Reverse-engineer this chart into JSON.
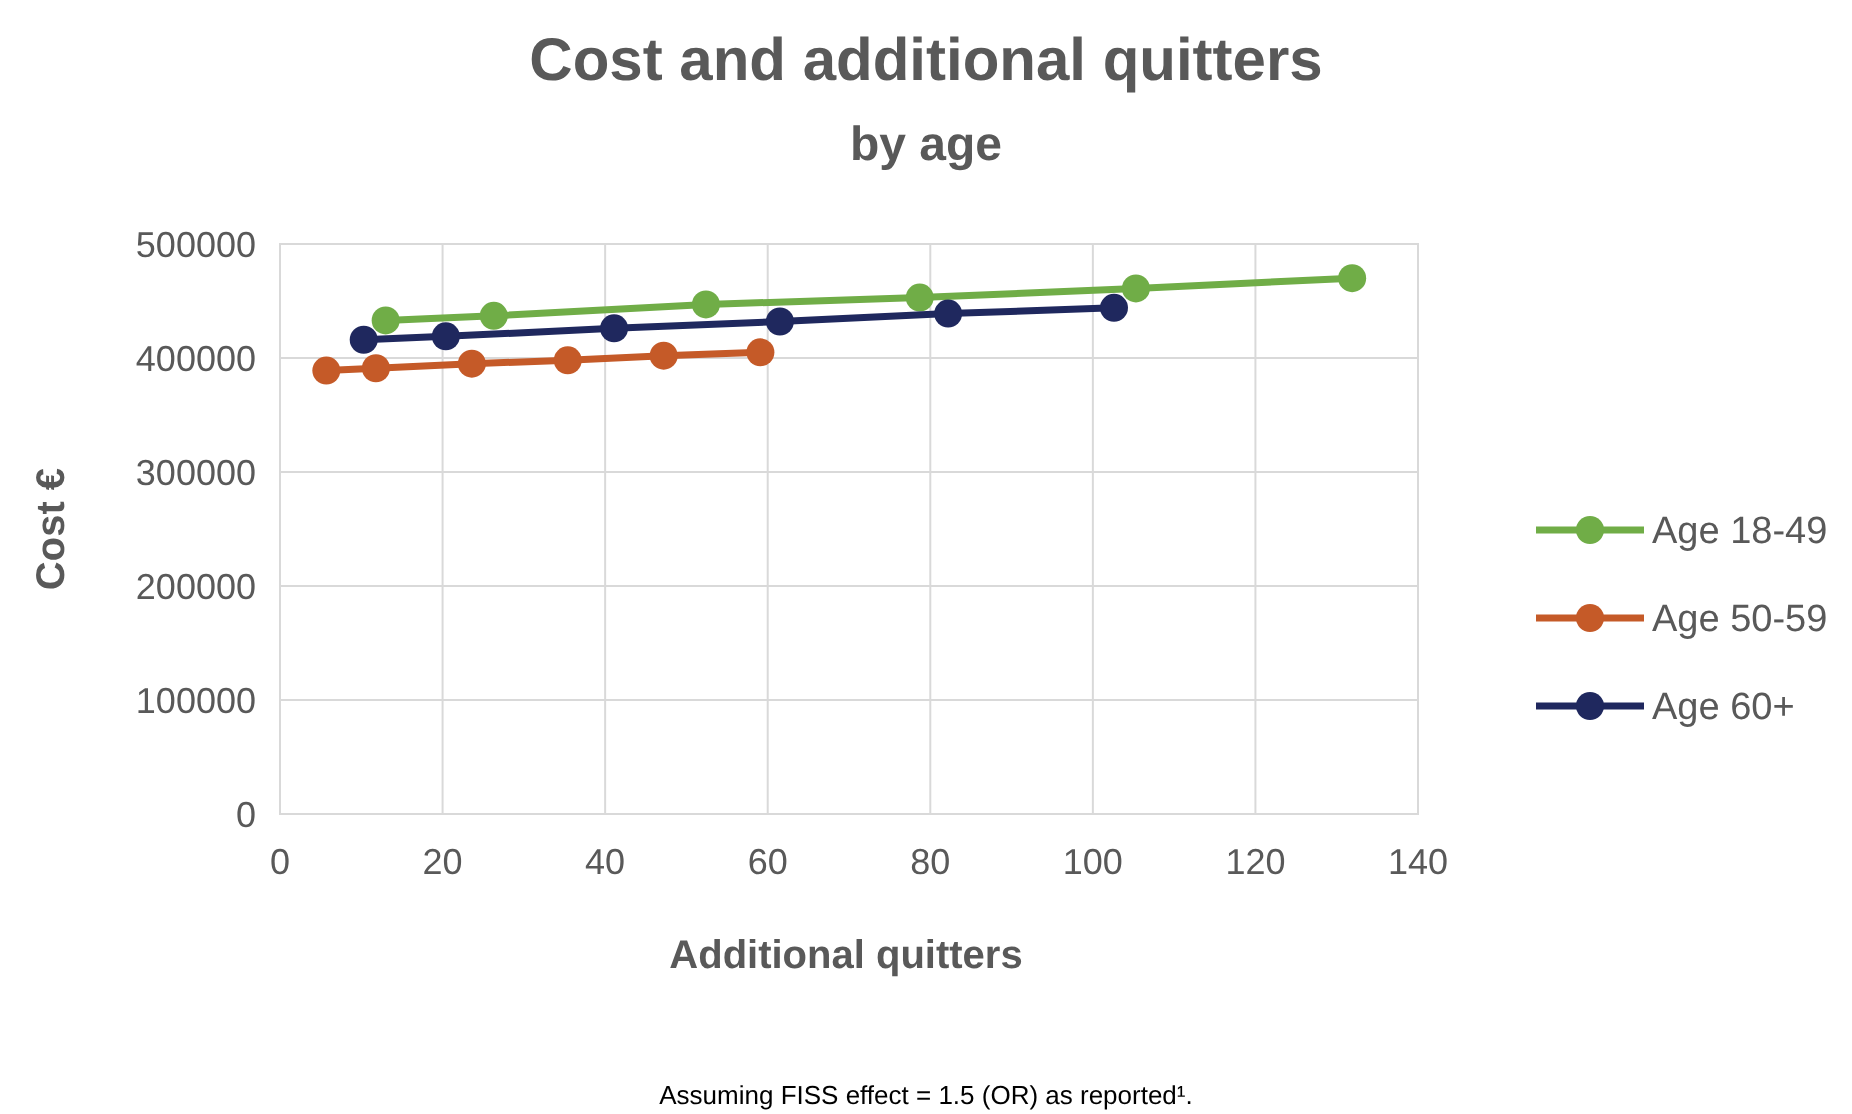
{
  "chart_data": {
    "type": "line",
    "title": "Cost and additional quitters",
    "subtitle": "by age",
    "xlabel": "Additional quitters",
    "ylabel": "Cost €",
    "xlim": [
      0,
      140
    ],
    "xticks": [
      0,
      20,
      40,
      60,
      80,
      100,
      120,
      140
    ],
    "ylim": [
      0,
      500000
    ],
    "yticks": [
      0,
      100000,
      200000,
      300000,
      400000,
      500000
    ],
    "grid": true,
    "legend": "right",
    "marker": "circle",
    "line_style": "solid",
    "annotations": [
      "Assuming FISS effect = 1.5 (OR) as reported¹."
    ],
    "series": [
      {
        "name": "Age 18-49",
        "color": "#70ad47",
        "x": [
          13,
          26.3,
          52.4,
          78.7,
          105.3,
          131.9
        ],
        "values": [
          433000,
          437000,
          447000,
          453000,
          461000,
          470000
        ]
      },
      {
        "name": "Age 50-59",
        "color": "#c55a28",
        "x": [
          5.7,
          11.8,
          23.6,
          35.4,
          47.2,
          59.1
        ],
        "values": [
          389000,
          391000,
          395000,
          398000,
          402000,
          405000
        ]
      },
      {
        "name": "Age 60+",
        "color": "#1f285e",
        "x": [
          10.3,
          20.4,
          41.1,
          61.5,
          82.2,
          102.6
        ],
        "values": [
          416000,
          419000,
          426000,
          432000,
          439000,
          444000
        ]
      }
    ]
  }
}
